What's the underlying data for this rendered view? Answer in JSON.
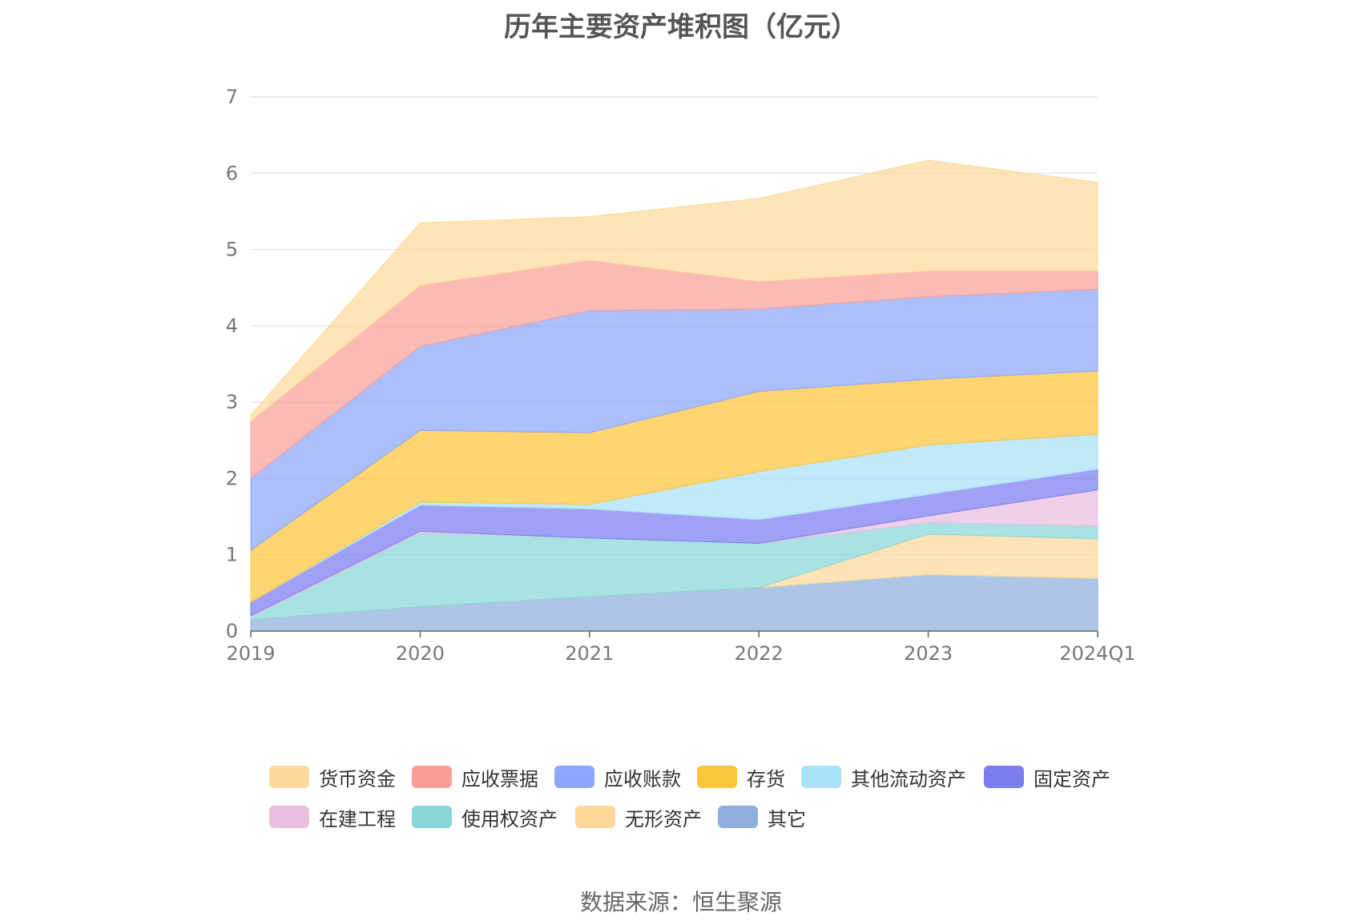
{
  "chart_data": {
    "type": "area",
    "stacked": true,
    "title": "历年主要资产堆积图（亿元）",
    "categories": [
      "2019",
      "2020",
      "2021",
      "2022",
      "2023",
      "2024Q1"
    ],
    "ylim": [
      0,
      7
    ],
    "yticks": [
      0,
      1,
      2,
      3,
      4,
      5,
      6,
      7
    ],
    "grid": true,
    "legend_position": "bottom",
    "series": [
      {
        "name": "其它",
        "color": "#8eaedc",
        "values": [
          0.15,
          0.32,
          0.45,
          0.57,
          0.74,
          0.69
        ]
      },
      {
        "name": "无形资产",
        "color": "#fcd89a",
        "values": [
          0.0,
          0.0,
          0.0,
          0.0,
          0.53,
          0.52
        ]
      },
      {
        "name": "使用权资产",
        "color": "#86d7d7",
        "values": [
          0.03,
          0.97,
          0.77,
          0.58,
          0.15,
          0.17
        ]
      },
      {
        "name": "在建工程",
        "color": "#e9bedf",
        "values": [
          0.02,
          0.02,
          0.0,
          0.0,
          0.09,
          0.47
        ]
      },
      {
        "name": "固定资产",
        "color": "#7b7df0",
        "values": [
          0.18,
          0.34,
          0.38,
          0.31,
          0.28,
          0.27
        ]
      },
      {
        "name": "其他流动资产",
        "color": "#a8e1f8",
        "values": [
          0.0,
          0.04,
          0.06,
          0.63,
          0.65,
          0.46
        ]
      },
      {
        "name": "存货",
        "color": "#fdc53a",
        "values": [
          0.68,
          0.94,
          0.94,
          1.05,
          0.86,
          0.83
        ]
      },
      {
        "name": "应收账款",
        "color": "#8ba6fb",
        "values": [
          0.94,
          1.1,
          1.6,
          1.08,
          1.08,
          1.07
        ]
      },
      {
        "name": "应收票据",
        "color": "#fa9f96",
        "values": [
          0.75,
          0.8,
          0.66,
          0.36,
          0.34,
          0.24
        ]
      },
      {
        "name": "货币资金",
        "color": "#fdd99b",
        "values": [
          0.08,
          0.82,
          0.57,
          1.09,
          1.45,
          1.16
        ]
      }
    ]
  },
  "legend": {
    "items": [
      {
        "label": "货币资金",
        "color": "#fdd99b"
      },
      {
        "label": "应收票据",
        "color": "#fa9f96"
      },
      {
        "label": "应收账款",
        "color": "#8ba6fb"
      },
      {
        "label": "存货",
        "color": "#fdc53a"
      },
      {
        "label": "其他流动资产",
        "color": "#a8e1f8"
      },
      {
        "label": "固定资产",
        "color": "#7b7df0"
      },
      {
        "label": "在建工程",
        "color": "#e9bedf"
      },
      {
        "label": "使用权资产",
        "color": "#86d7d7"
      },
      {
        "label": "无形资产",
        "color": "#fcd89a"
      },
      {
        "label": "其它",
        "color": "#8eaedc"
      }
    ]
  },
  "source": "数据来源：恒生聚源"
}
